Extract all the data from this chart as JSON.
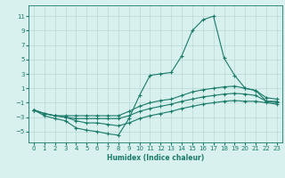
{
  "xlabel": "Humidex (Indice chaleur)",
  "xlim": [
    -0.5,
    23.5
  ],
  "ylim": [
    -6.5,
    12.5
  ],
  "xticks": [
    0,
    1,
    2,
    3,
    4,
    5,
    6,
    7,
    8,
    9,
    10,
    11,
    12,
    13,
    14,
    15,
    16,
    17,
    18,
    19,
    20,
    21,
    22,
    23
  ],
  "yticks": [
    -5,
    -3,
    -1,
    1,
    3,
    5,
    7,
    9,
    11
  ],
  "line_color": "#1a7a6a",
  "bg_color": "#d8f0ee",
  "grid_color": "#b8d8d4",
  "lines": [
    {
      "x": [
        0,
        1,
        2,
        3,
        4,
        5,
        6,
        7,
        8,
        9,
        10,
        11,
        12,
        13,
        14,
        15,
        16,
        17,
        18,
        19,
        20,
        21,
        22,
        23
      ],
      "y": [
        -2,
        -2.8,
        -3.2,
        -3.5,
        -4.5,
        -4.8,
        -5.0,
        -5.3,
        -5.5,
        -3.2,
        0.0,
        2.8,
        3.0,
        3.2,
        5.5,
        9.0,
        10.5,
        11.0,
        5.2,
        2.8,
        1.0,
        0.7,
        -0.8,
        -0.8
      ]
    },
    {
      "x": [
        0,
        1,
        2,
        3,
        4,
        5,
        6,
        7,
        8,
        9,
        10,
        11,
        12,
        13,
        14,
        15,
        16,
        17,
        18,
        19,
        20,
        21,
        22,
        23
      ],
      "y": [
        -2,
        -2.5,
        -2.8,
        -2.8,
        -2.8,
        -2.8,
        -2.8,
        -2.8,
        -2.8,
        -2.2,
        -1.5,
        -1.0,
        -0.7,
        -0.5,
        0.0,
        0.5,
        0.8,
        1.0,
        1.2,
        1.3,
        1.0,
        0.7,
        -0.3,
        -0.5
      ]
    },
    {
      "x": [
        0,
        1,
        2,
        3,
        4,
        5,
        6,
        7,
        8,
        9,
        10,
        11,
        12,
        13,
        14,
        15,
        16,
        17,
        18,
        19,
        20,
        21,
        22,
        23
      ],
      "y": [
        -2,
        -2.5,
        -2.8,
        -3.0,
        -3.2,
        -3.2,
        -3.2,
        -3.2,
        -3.2,
        -2.8,
        -2.2,
        -1.8,
        -1.5,
        -1.2,
        -0.8,
        -0.5,
        -0.2,
        0.0,
        0.2,
        0.3,
        0.2,
        0.0,
        -0.8,
        -1.0
      ]
    },
    {
      "x": [
        0,
        1,
        2,
        3,
        4,
        5,
        6,
        7,
        8,
        9,
        10,
        11,
        12,
        13,
        14,
        15,
        16,
        17,
        18,
        19,
        20,
        21,
        22,
        23
      ],
      "y": [
        -2,
        -2.5,
        -2.8,
        -3.0,
        -3.5,
        -3.8,
        -3.8,
        -4.0,
        -4.2,
        -3.8,
        -3.2,
        -2.8,
        -2.5,
        -2.2,
        -1.8,
        -1.5,
        -1.2,
        -1.0,
        -0.8,
        -0.7,
        -0.8,
        -0.8,
        -1.0,
        -1.2
      ]
    }
  ]
}
